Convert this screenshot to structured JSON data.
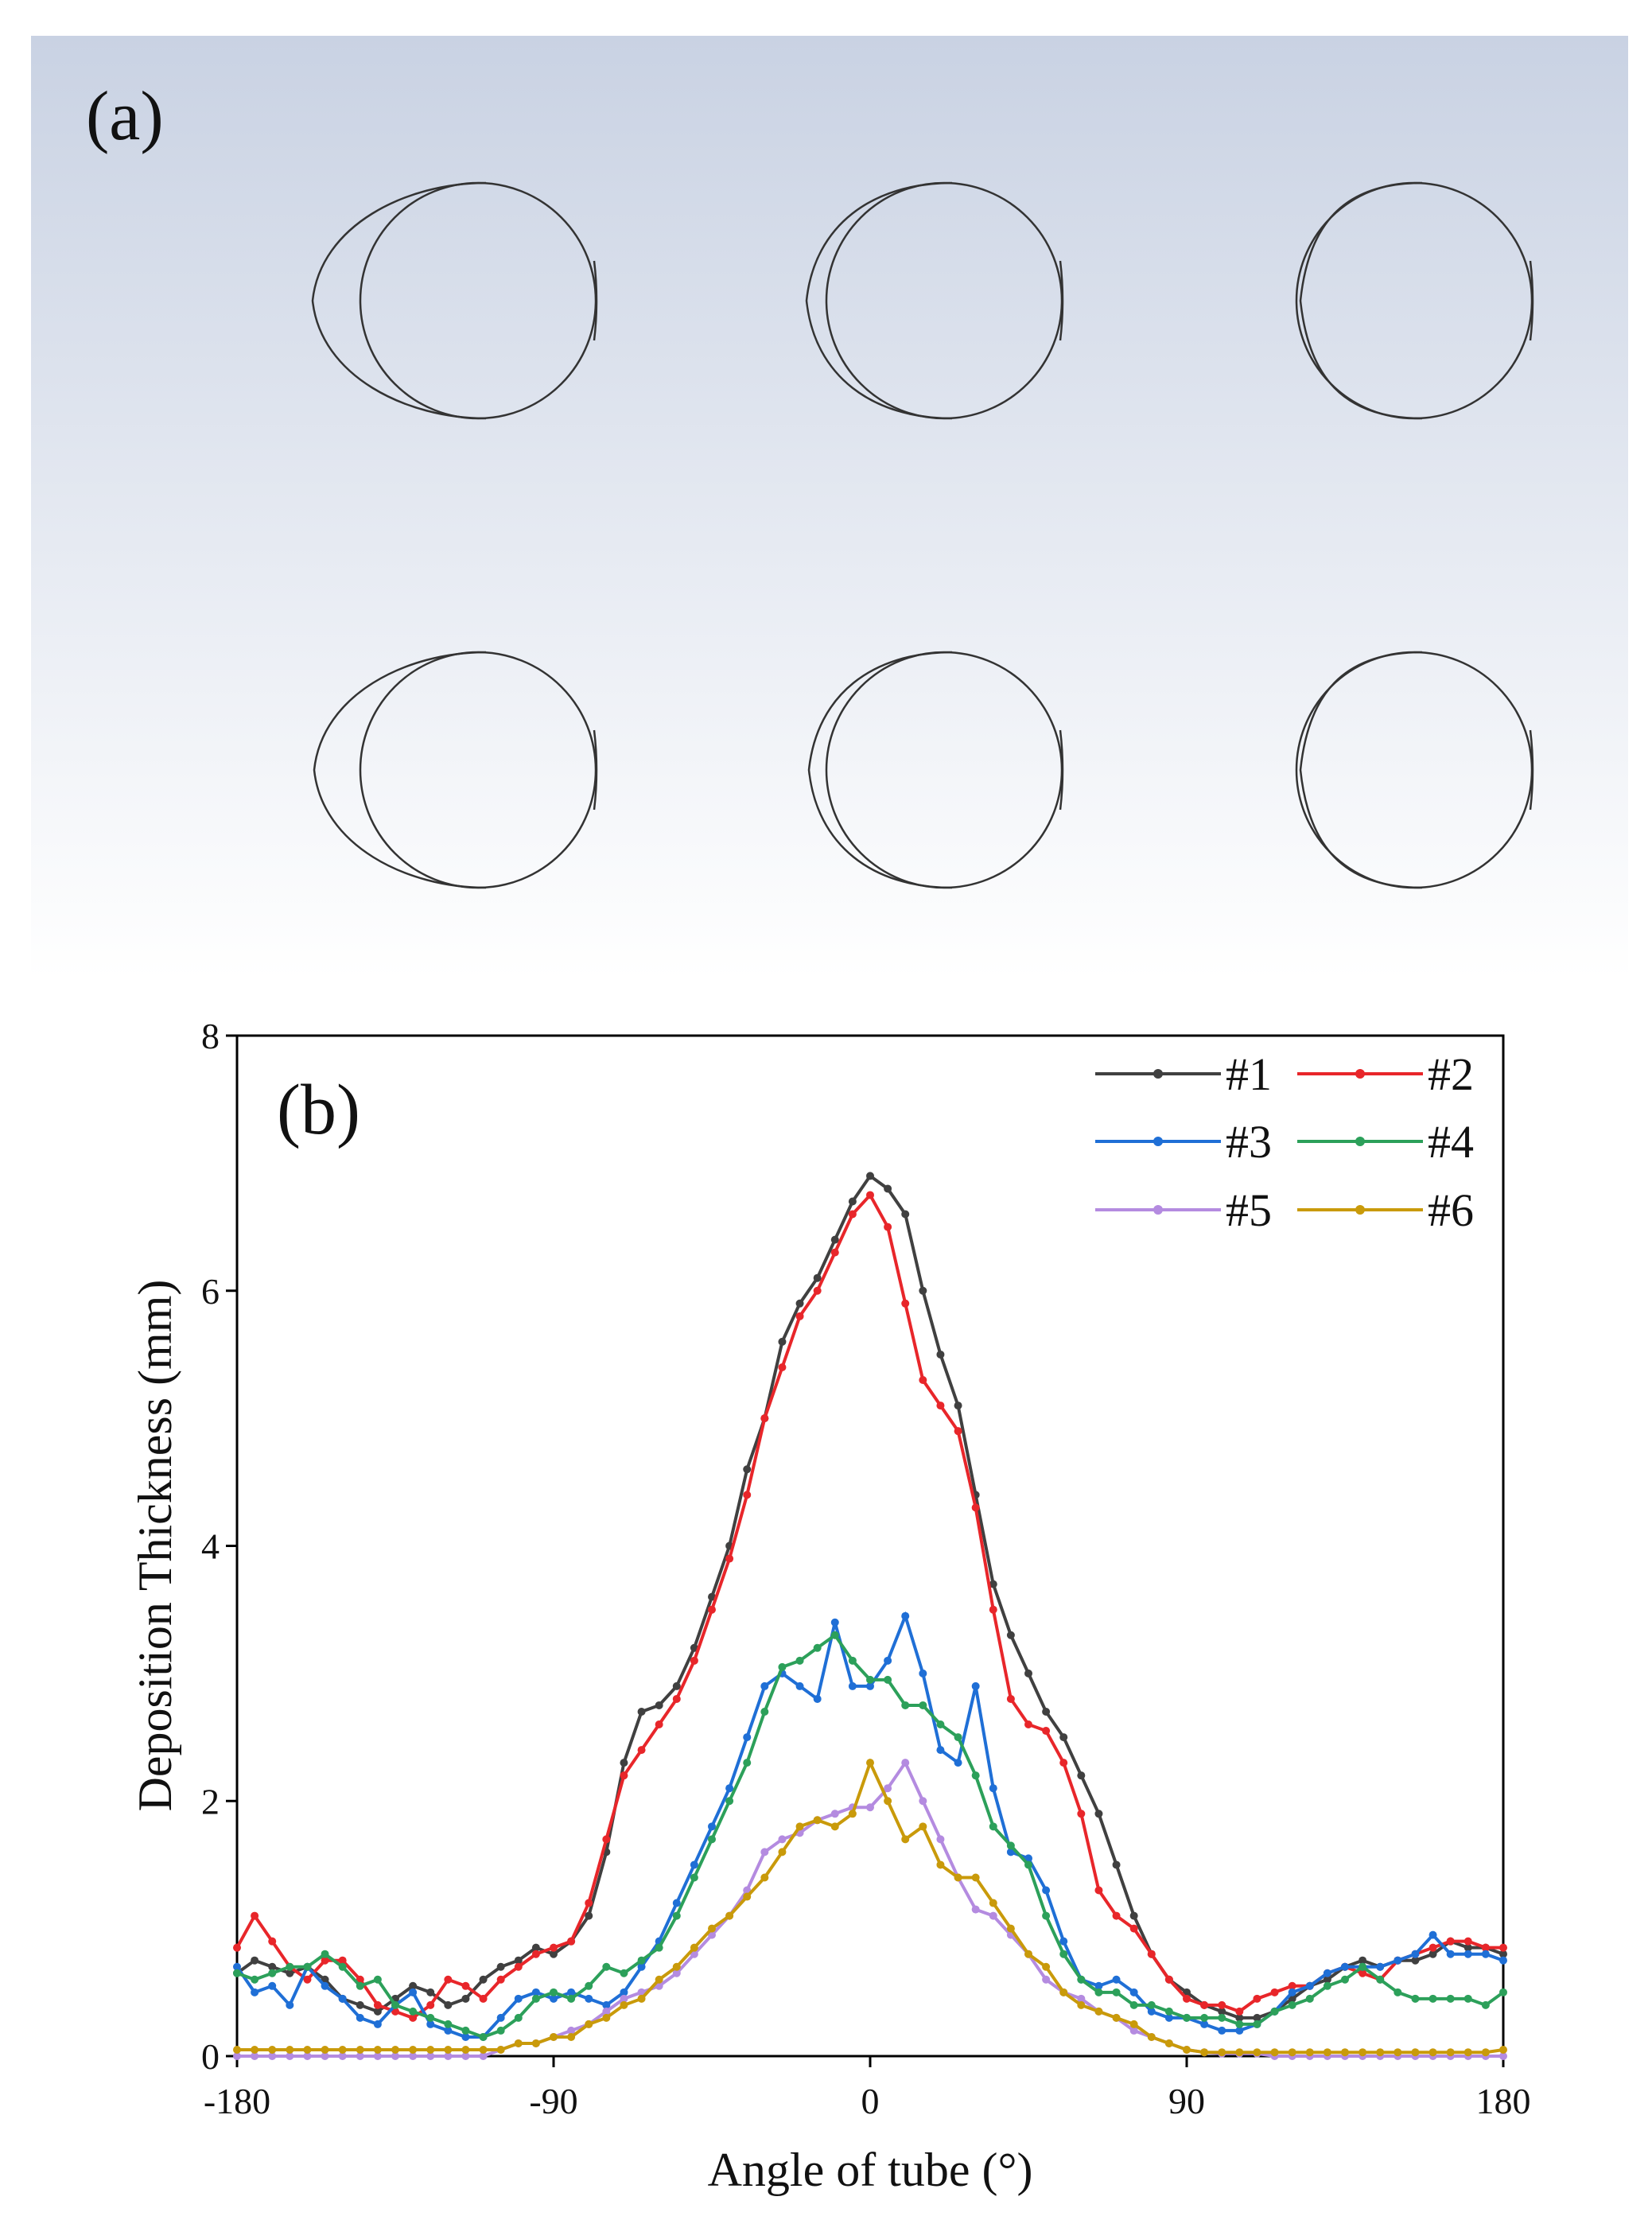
{
  "panel_a": {
    "label": "(a)"
  },
  "chart_data": {
    "type": "line",
    "panel_label": "(b)",
    "x_label": "Angle of tube (°)",
    "y_label": "Deposition Thickness (mm)",
    "xlim": [
      -180,
      180
    ],
    "ylim": [
      0,
      8
    ],
    "xticks": [
      -180,
      -90,
      0,
      90,
      180
    ],
    "yticks": [
      0,
      2,
      4,
      6,
      8
    ],
    "legend": "upper right",
    "x": [
      -180,
      -175,
      -170,
      -165,
      -160,
      -155,
      -150,
      -145,
      -140,
      -135,
      -130,
      -125,
      -120,
      -115,
      -110,
      -105,
      -100,
      -95,
      -90,
      -85,
      -80,
      -75,
      -70,
      -65,
      -60,
      -55,
      -50,
      -45,
      -40,
      -35,
      -30,
      -25,
      -20,
      -15,
      -10,
      -5,
      0,
      5,
      10,
      15,
      20,
      25,
      30,
      35,
      40,
      45,
      50,
      55,
      60,
      65,
      70,
      75,
      80,
      85,
      90,
      95,
      100,
      105,
      110,
      115,
      120,
      125,
      130,
      135,
      140,
      145,
      150,
      155,
      160,
      165,
      170,
      175,
      180
    ],
    "series": [
      {
        "name": "#1",
        "color": "#404040",
        "values": [
          0.65,
          0.75,
          0.7,
          0.65,
          0.7,
          0.6,
          0.45,
          0.4,
          0.35,
          0.45,
          0.55,
          0.5,
          0.4,
          0.45,
          0.6,
          0.7,
          0.75,
          0.85,
          0.8,
          0.9,
          1.1,
          1.6,
          2.3,
          2.7,
          2.75,
          2.9,
          3.2,
          3.6,
          4.0,
          4.6,
          5.0,
          5.6,
          5.9,
          6.1,
          6.4,
          6.7,
          6.9,
          6.8,
          6.6,
          6.0,
          5.5,
          5.1,
          4.4,
          3.7,
          3.3,
          3.0,
          2.7,
          2.5,
          2.2,
          1.9,
          1.5,
          1.1,
          0.8,
          0.6,
          0.5,
          0.4,
          0.35,
          0.3,
          0.3,
          0.35,
          0.45,
          0.55,
          0.6,
          0.7,
          0.75,
          0.7,
          0.75,
          0.75,
          0.8,
          0.9,
          0.85,
          0.85,
          0.8
        ]
      },
      {
        "name": "#2",
        "color": "#e8262a",
        "values": [
          0.85,
          1.1,
          0.9,
          0.7,
          0.6,
          0.75,
          0.75,
          0.6,
          0.4,
          0.35,
          0.3,
          0.4,
          0.6,
          0.55,
          0.45,
          0.6,
          0.7,
          0.8,
          0.85,
          0.9,
          1.2,
          1.7,
          2.2,
          2.4,
          2.6,
          2.8,
          3.1,
          3.5,
          3.9,
          4.4,
          5.0,
          5.4,
          5.8,
          6.0,
          6.3,
          6.6,
          6.75,
          6.5,
          5.9,
          5.3,
          5.1,
          4.9,
          4.3,
          3.5,
          2.8,
          2.6,
          2.55,
          2.3,
          1.9,
          1.3,
          1.1,
          1.0,
          0.8,
          0.6,
          0.45,
          0.4,
          0.4,
          0.35,
          0.45,
          0.5,
          0.55,
          0.55,
          0.65,
          0.7,
          0.65,
          0.6,
          0.75,
          0.8,
          0.85,
          0.9,
          0.9,
          0.85,
          0.85
        ]
      },
      {
        "name": "#3",
        "color": "#1f6fd6",
        "values": [
          0.7,
          0.5,
          0.55,
          0.4,
          0.7,
          0.55,
          0.45,
          0.3,
          0.25,
          0.4,
          0.5,
          0.25,
          0.2,
          0.15,
          0.15,
          0.3,
          0.45,
          0.5,
          0.45,
          0.5,
          0.45,
          0.4,
          0.5,
          0.7,
          0.9,
          1.2,
          1.5,
          1.8,
          2.1,
          2.5,
          2.9,
          3.0,
          2.9,
          2.8,
          3.4,
          2.9,
          2.9,
          3.1,
          3.45,
          3.0,
          2.4,
          2.3,
          2.9,
          2.1,
          1.6,
          1.55,
          1.3,
          0.9,
          0.6,
          0.55,
          0.6,
          0.5,
          0.35,
          0.3,
          0.3,
          0.25,
          0.2,
          0.2,
          0.25,
          0.35,
          0.5,
          0.55,
          0.65,
          0.7,
          0.7,
          0.7,
          0.75,
          0.8,
          0.95,
          0.8,
          0.8,
          0.8,
          0.75
        ]
      },
      {
        "name": "#4",
        "color": "#2ca05a",
        "values": [
          0.65,
          0.6,
          0.65,
          0.7,
          0.7,
          0.8,
          0.7,
          0.55,
          0.6,
          0.4,
          0.35,
          0.3,
          0.25,
          0.2,
          0.15,
          0.2,
          0.3,
          0.45,
          0.5,
          0.45,
          0.55,
          0.7,
          0.65,
          0.75,
          0.85,
          1.1,
          1.4,
          1.7,
          2.0,
          2.3,
          2.7,
          3.05,
          3.1,
          3.2,
          3.3,
          3.1,
          2.95,
          2.95,
          2.75,
          2.75,
          2.6,
          2.5,
          2.2,
          1.8,
          1.65,
          1.5,
          1.1,
          0.8,
          0.6,
          0.5,
          0.5,
          0.4,
          0.4,
          0.35,
          0.3,
          0.3,
          0.3,
          0.25,
          0.25,
          0.35,
          0.4,
          0.45,
          0.55,
          0.6,
          0.7,
          0.6,
          0.5,
          0.45,
          0.45,
          0.45,
          0.45,
          0.4,
          0.5
        ]
      },
      {
        "name": "#5",
        "color": "#b48be0",
        "values": [
          0,
          0,
          0,
          0,
          0,
          0,
          0,
          0,
          0,
          0,
          0,
          0,
          0,
          0,
          0,
          0.05,
          0.1,
          0.1,
          0.15,
          0.2,
          0.25,
          0.35,
          0.45,
          0.5,
          0.55,
          0.65,
          0.8,
          0.95,
          1.1,
          1.3,
          1.6,
          1.7,
          1.75,
          1.85,
          1.9,
          1.95,
          1.95,
          2.1,
          2.3,
          2.0,
          1.7,
          1.4,
          1.15,
          1.1,
          0.95,
          0.8,
          0.6,
          0.5,
          0.45,
          0.35,
          0.3,
          0.2,
          0.15,
          0.1,
          0.05,
          0.03,
          0.02,
          0.02,
          0.02,
          0,
          0,
          0,
          0,
          0,
          0,
          0,
          0,
          0,
          0,
          0,
          0,
          0,
          0
        ]
      },
      {
        "name": "#6",
        "color": "#c99a0a",
        "values": [
          0.05,
          0.05,
          0.05,
          0.05,
          0.05,
          0.05,
          0.05,
          0.05,
          0.05,
          0.05,
          0.05,
          0.05,
          0.05,
          0.05,
          0.05,
          0.05,
          0.1,
          0.1,
          0.15,
          0.15,
          0.25,
          0.3,
          0.4,
          0.45,
          0.6,
          0.7,
          0.85,
          1.0,
          1.1,
          1.25,
          1.4,
          1.6,
          1.8,
          1.85,
          1.8,
          1.9,
          2.3,
          2.0,
          1.7,
          1.8,
          1.5,
          1.4,
          1.4,
          1.2,
          1.0,
          0.8,
          0.7,
          0.5,
          0.4,
          0.35,
          0.3,
          0.25,
          0.15,
          0.1,
          0.05,
          0.03,
          0.03,
          0.03,
          0.03,
          0.03,
          0.03,
          0.03,
          0.03,
          0.03,
          0.03,
          0.03,
          0.03,
          0.03,
          0.03,
          0.03,
          0.03,
          0.03,
          0.05
        ]
      }
    ]
  }
}
